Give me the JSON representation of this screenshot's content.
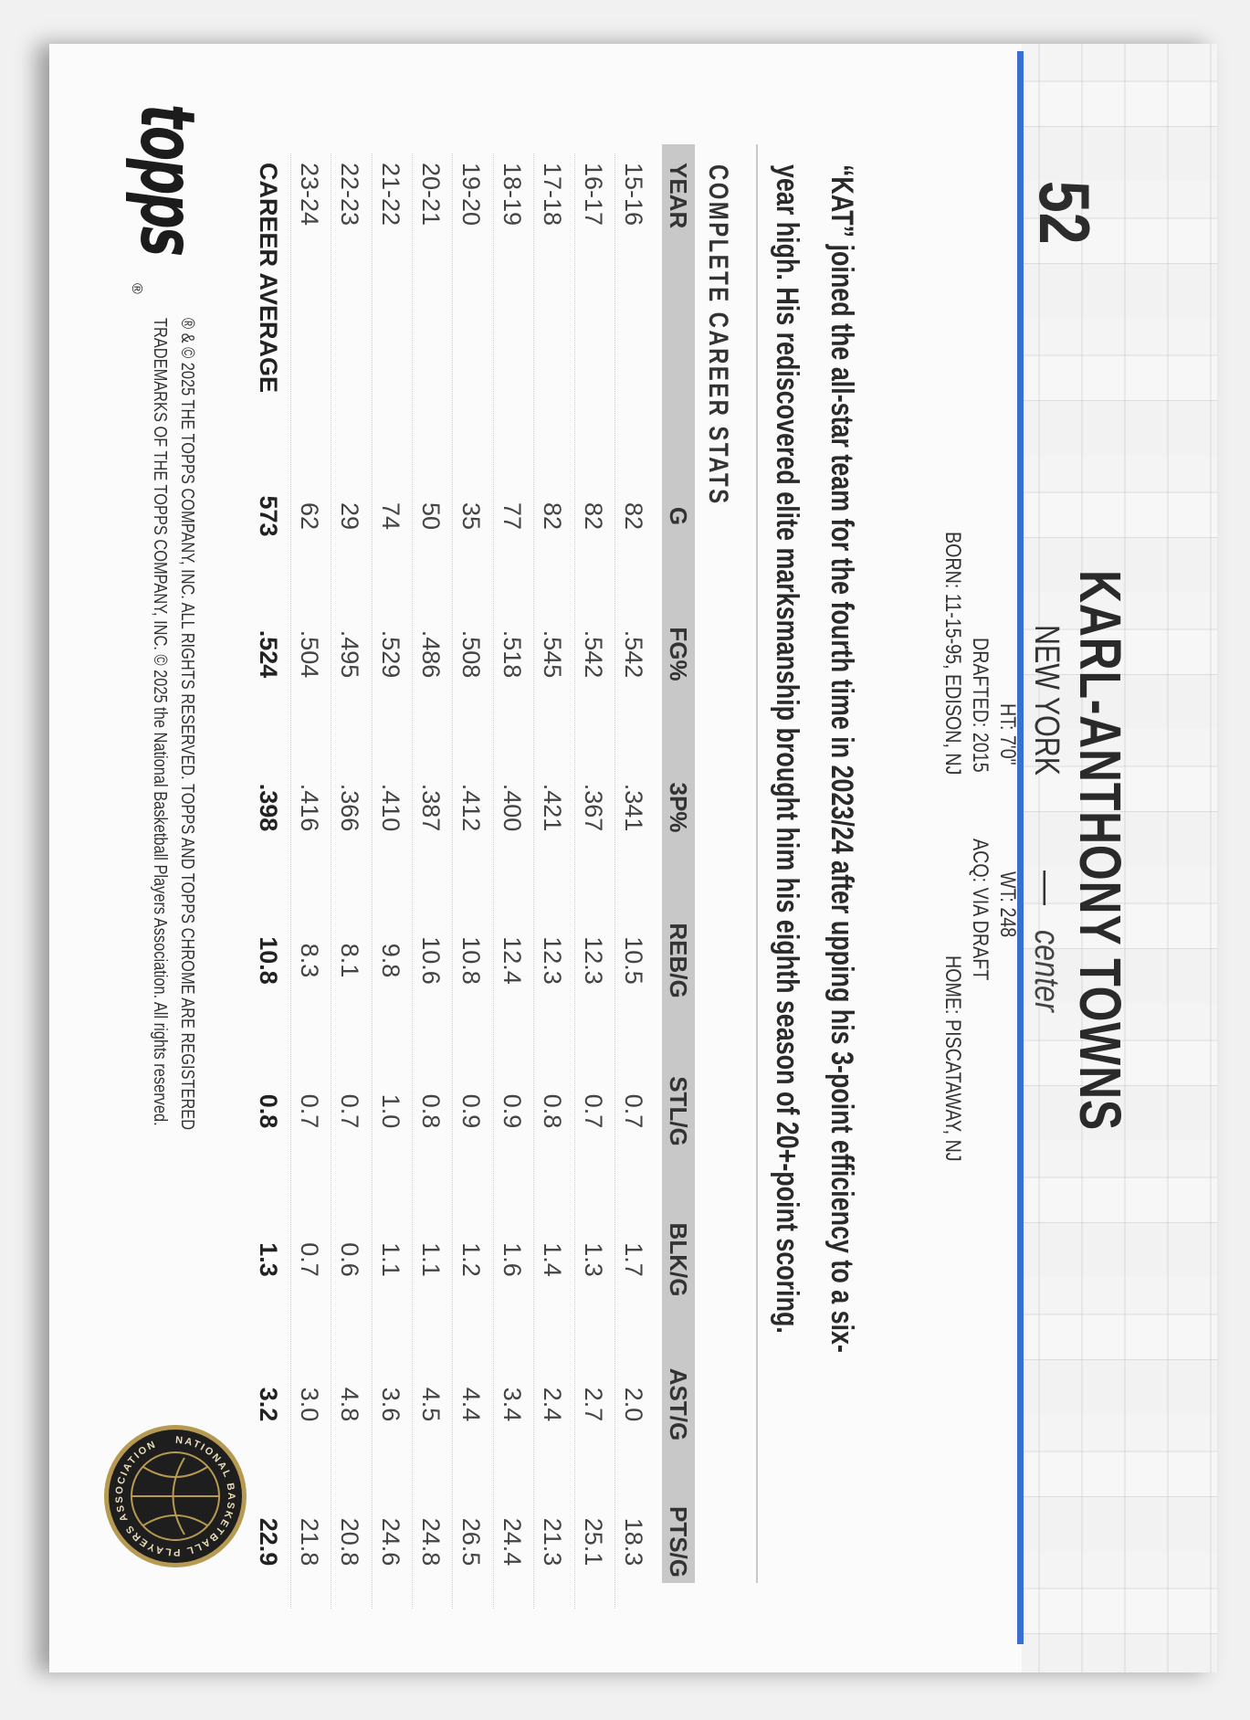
{
  "card": {
    "number": "52",
    "player_name": "KARL-ANTHONY TOWNS",
    "team": "NEW YORK",
    "dash": "—",
    "position": "center",
    "info": {
      "height": "HT: 7'0\"",
      "weight": "WT: 248",
      "drafted": "DRAFTED: 2015",
      "acquired": "ACQ: VIA DRAFT",
      "born": "BORN: 11-15-95, EDISON, NJ",
      "home": "HOME: PISCATAWAY, NJ"
    },
    "bio_lines": [
      "“KAT” joined the all-star team for the fourth time in 2023/24 after upping his 3-point efficiency to a six-",
      "year high.  His rediscovered elite marksmanship brought him his eighth season of 20+-point scoring."
    ],
    "accent_color": "#3a6fd0"
  },
  "stats": {
    "title": "COMPLETE CAREER STATS",
    "columns": [
      "YEAR",
      "G",
      "FG%",
      "3P%",
      "REB/G",
      "STL/G",
      "BLK/G",
      "AST/G",
      "PTS/G"
    ],
    "rows": [
      [
        "15-16",
        "82",
        ".542",
        ".341",
        "10.5",
        "0.7",
        "1.7",
        "2.0",
        "18.3"
      ],
      [
        "16-17",
        "82",
        ".542",
        ".367",
        "12.3",
        "0.7",
        "1.3",
        "2.7",
        "25.1"
      ],
      [
        "17-18",
        "82",
        ".545",
        ".421",
        "12.3",
        "0.8",
        "1.4",
        "2.4",
        "21.3"
      ],
      [
        "18-19",
        "77",
        ".518",
        ".400",
        "12.4",
        "0.9",
        "1.6",
        "3.4",
        "24.4"
      ],
      [
        "19-20",
        "35",
        ".508",
        ".412",
        "10.8",
        "0.9",
        "1.2",
        "4.4",
        "26.5"
      ],
      [
        "20-21",
        "50",
        ".486",
        ".387",
        "10.6",
        "0.8",
        "1.1",
        "4.5",
        "24.8"
      ],
      [
        "21-22",
        "74",
        ".529",
        ".410",
        "9.8",
        "1.0",
        "1.1",
        "3.6",
        "24.6"
      ],
      [
        "22-23",
        "29",
        ".495",
        ".366",
        "8.1",
        "0.7",
        "0.6",
        "4.8",
        "20.8"
      ],
      [
        "23-24",
        "62",
        ".504",
        ".416",
        "8.3",
        "0.7",
        "0.7",
        "3.0",
        "21.8"
      ]
    ],
    "career": [
      "CAREER AVERAGE",
      "573",
      ".524",
      ".398",
      "10.8",
      "0.8",
      "1.3",
      "3.2",
      "22.9"
    ]
  },
  "footer": {
    "brand_logo": "topps",
    "registered_mark": "®",
    "copyright_lines": [
      "® & © 2025 THE TOPPS COMPANY, INC. ALL RIGHTS RESERVED. TOPPS AND TOPPS CHROME ARE REGISTERED",
      "TRADEMARKS OF THE TOPPS COMPANY, INC. © 2025 the National Basketball Players Association. All rights reserved."
    ],
    "seal_text": "NATIONAL BASKETBALL PLAYERS ASSOCIATION"
  }
}
